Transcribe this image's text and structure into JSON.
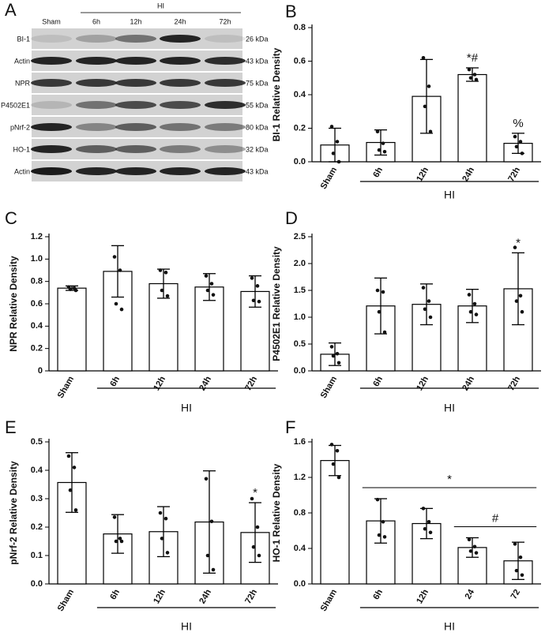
{
  "blot": {
    "panel": "A",
    "group": "HI",
    "lanes": [
      "Sham",
      "6h",
      "12h",
      "24h",
      "72h"
    ],
    "rows": [
      {
        "label": "BI-1",
        "size": "26 kDa"
      },
      {
        "label": "Actin",
        "size": "43 kDa"
      },
      {
        "label": "NPR",
        "size": "75 kDa"
      },
      {
        "label": "P4502E1",
        "size": "55 kDa"
      },
      {
        "label": "pNrf-2",
        "size": "80 kDa"
      },
      {
        "label": "HO-1",
        "size": "32 kDa"
      },
      {
        "label": "Actin",
        "size": "43 kDa"
      }
    ]
  },
  "chart_data": [
    {
      "type": "bar",
      "panel": "B",
      "ylabel": "BI-1 Relative Density",
      "categories": [
        "Sham",
        "6h",
        "12h",
        "24h",
        "72h"
      ],
      "values": [
        0.1,
        0.115,
        0.39,
        0.52,
        0.11
      ],
      "errors": [
        0.1,
        0.075,
        0.22,
        0.04,
        0.06
      ],
      "points": [
        [
          0.21,
          0.12,
          0.05,
          0.0
        ],
        [
          0.18,
          0.11,
          0.07,
          0.06
        ],
        [
          0.62,
          0.45,
          0.33,
          0.18
        ],
        [
          0.55,
          0.52,
          0.5,
          0.49
        ],
        [
          0.15,
          0.12,
          0.09,
          0.05
        ]
      ],
      "ylim": [
        0,
        0.8
      ],
      "yticks": [
        {
          "value": 0,
          "label": "0.0"
        },
        0.2,
        0.4,
        0.6,
        0.8
      ],
      "group": {
        "label": "HI",
        "from": "6h",
        "to": "72h"
      },
      "annotations": [
        {
          "text": "*#",
          "at": "24h"
        },
        {
          "text": "%",
          "at": "72h"
        }
      ]
    },
    {
      "type": "bar",
      "panel": "C",
      "ylabel": "NPR Relative Density",
      "categories": [
        "Sham",
        "6h",
        "12h",
        "24h",
        "72h"
      ],
      "values": [
        0.74,
        0.89,
        0.78,
        0.75,
        0.71
      ],
      "errors": [
        0.02,
        0.23,
        0.13,
        0.12,
        0.14
      ],
      "points": [
        [
          0.75,
          0.74,
          0.73,
          0.72
        ],
        [
          1.02,
          0.9,
          0.6,
          0.55
        ],
        [
          0.9,
          0.88,
          0.72,
          0.67
        ],
        [
          0.85,
          0.78,
          0.72,
          0.68
        ],
        [
          0.83,
          0.76,
          0.63,
          0.62
        ]
      ],
      "ylim": [
        0,
        1.2
      ],
      "yticks": [
        0,
        0.2,
        0.4,
        0.6,
        0.8,
        {
          "value": 1,
          "label": "1.0"
        },
        1.2
      ],
      "group": {
        "label": "HI",
        "from": "6h",
        "to": "72h"
      },
      "annotations": []
    },
    {
      "type": "bar",
      "panel": "D",
      "ylabel": "P4502E1 Relative Density",
      "categories": [
        "Sham",
        "6h",
        "12h",
        "24h",
        "72h"
      ],
      "values": [
        0.31,
        1.21,
        1.24,
        1.21,
        1.53
      ],
      "errors": [
        0.21,
        0.52,
        0.38,
        0.31,
        0.67
      ],
      "points": [
        [
          0.45,
          0.32,
          0.28,
          0.15
        ],
        [
          1.5,
          1.47,
          1.1,
          0.72
        ],
        [
          1.55,
          1.3,
          1.15,
          1.0
        ],
        [
          1.42,
          1.25,
          1.1,
          1.05
        ],
        [
          2.3,
          1.4,
          1.3,
          1.1
        ]
      ],
      "ylim": [
        0,
        2.5
      ],
      "yticks": [
        {
          "value": 0,
          "label": "0.0"
        },
        0.5,
        {
          "value": 1,
          "label": "1.0"
        },
        1.5,
        {
          "value": 2,
          "label": "2.0"
        },
        2.5
      ],
      "group": {
        "label": "HI",
        "from": "6h",
        "to": "72h"
      },
      "annotations": [
        {
          "text": "*",
          "at": "72h"
        }
      ]
    },
    {
      "type": "bar",
      "panel": "E",
      "ylabel": "pNrf-2 Relative Density",
      "categories": [
        "Sham",
        "6h",
        "12h",
        "24h",
        "72h"
      ],
      "values": [
        0.357,
        0.176,
        0.184,
        0.218,
        0.181
      ],
      "errors": [
        0.105,
        0.068,
        0.088,
        0.18,
        0.105
      ],
      "points": [
        [
          0.45,
          0.41,
          0.33,
          0.26
        ],
        [
          0.235,
          0.16,
          0.15,
          0.15
        ],
        [
          0.25,
          0.23,
          0.16,
          0.11
        ],
        [
          0.37,
          0.22,
          0.1,
          0.05
        ],
        [
          0.3,
          0.2,
          0.13,
          0.1
        ]
      ],
      "ylim": [
        0,
        0.5
      ],
      "yticks": [
        {
          "value": 0,
          "label": "0.0"
        },
        0.1,
        0.2,
        0.3,
        0.4,
        0.5
      ],
      "group": {
        "label": "HI",
        "from": "6h",
        "to": "72h"
      },
      "annotations": [
        {
          "text": "*",
          "at": "72h"
        }
      ]
    },
    {
      "type": "bar",
      "panel": "F",
      "ylabel": "HO-1 Relative Density",
      "categories": [
        "Sham",
        "6h",
        "12h",
        "24",
        "72"
      ],
      "values": [
        1.39,
        0.71,
        0.68,
        0.41,
        0.26
      ],
      "errors": [
        0.17,
        0.25,
        0.17,
        0.11,
        0.21
      ],
      "points": [
        [
          1.57,
          1.5,
          1.35,
          1.2
        ],
        [
          0.95,
          0.7,
          0.55,
          0.53
        ],
        [
          0.85,
          0.7,
          0.62,
          0.58
        ],
        [
          0.5,
          0.42,
          0.37,
          0.35
        ],
        [
          0.45,
          0.3,
          0.15,
          0.1
        ]
      ],
      "ylim": [
        0,
        1.6
      ],
      "yticks": [
        {
          "value": 0,
          "label": "0.0"
        },
        0.4,
        0.8,
        1.2,
        1.6
      ],
      "group": {
        "label": "HI",
        "from": "6h",
        "to": "72"
      },
      "annotations": [
        {
          "text": "*",
          "from": "6h",
          "to": "72"
        },
        {
          "text": "#",
          "from": "24",
          "to": "72"
        }
      ]
    }
  ]
}
